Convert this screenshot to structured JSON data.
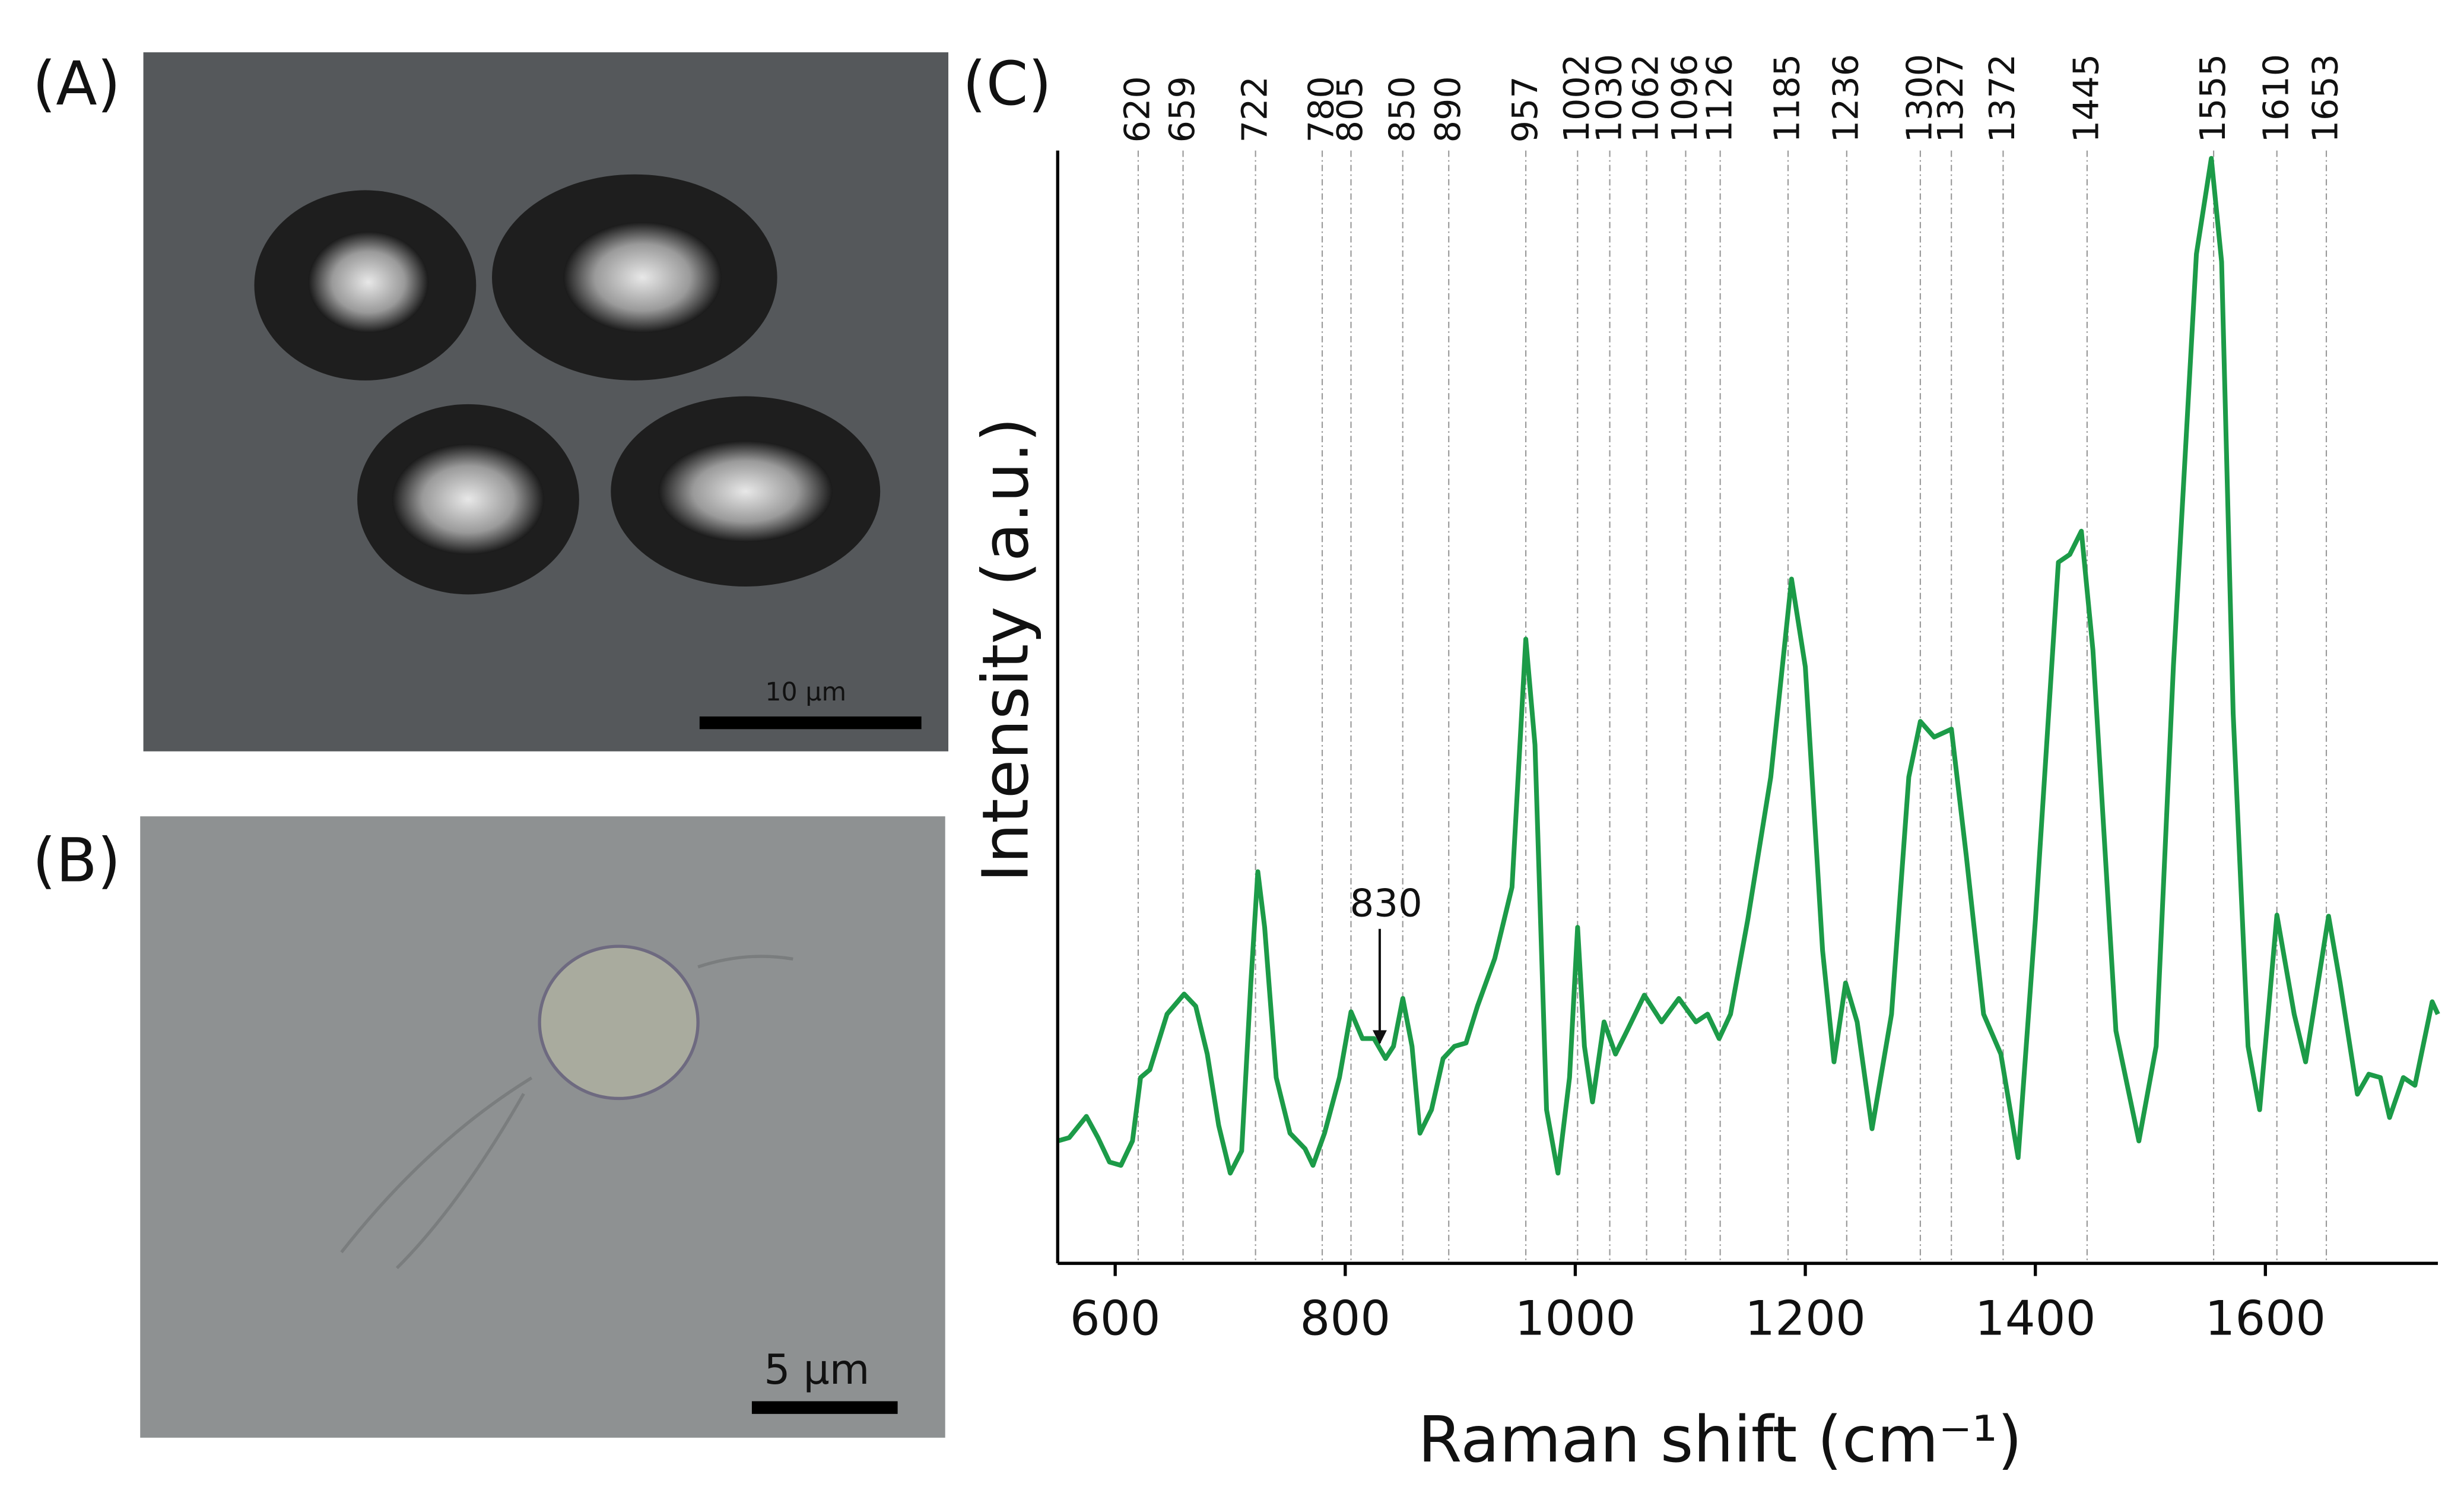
{
  "panels": [
    {
      "label": "(A)",
      "scale_bar": "10 μm"
    },
    {
      "label": "(B)",
      "scale_bar": "5 μm"
    }
  ],
  "chart_data": {
    "type": "line",
    "panel_label": "(C)",
    "x_label": "Raman shift (cm⁻¹)",
    "y_label": "Intensity (a.u.)",
    "xlim": [
      550,
      1750
    ],
    "ylim": [
      0,
      100
    ],
    "xticks": [
      600,
      800,
      1000,
      1200,
      1400,
      1600
    ],
    "peak_lines": [
      620,
      659,
      722,
      780,
      805,
      850,
      890,
      957,
      1002,
      1030,
      1062,
      1096,
      1126,
      1185,
      1236,
      1300,
      1327,
      1372,
      1445,
      1555,
      1610,
      1653
    ],
    "annotation": 830,
    "series": [
      {
        "color": "#1c9b48",
        "x": [
          550,
          560,
          575,
          585,
          595,
          605,
          615,
          622,
          630,
          645,
          660,
          670,
          680,
          690,
          700,
          710,
          718,
          724,
          730,
          740,
          752,
          765,
          772,
          782,
          795,
          805,
          815,
          825,
          835,
          842,
          850,
          858,
          865,
          875,
          885,
          895,
          905,
          915,
          930,
          945,
          957,
          965,
          975,
          985,
          995,
          1002,
          1008,
          1015,
          1025,
          1035,
          1045,
          1060,
          1075,
          1090,
          1105,
          1115,
          1125,
          1135,
          1150,
          1170,
          1188,
          1200,
          1215,
          1225,
          1235,
          1245,
          1258,
          1275,
          1290,
          1300,
          1312,
          1327,
          1340,
          1355,
          1370,
          1385,
          1400,
          1420,
          1430,
          1440,
          1450,
          1470,
          1490,
          1505,
          1520,
          1540,
          1553,
          1562,
          1572,
          1585,
          1595,
          1610,
          1625,
          1635,
          1655,
          1665,
          1680,
          1690,
          1700,
          1708,
          1720,
          1730,
          1745,
          1750
        ],
        "values": [
          11.0,
          11.3,
          13.2,
          11.3,
          9.1,
          8.8,
          11.0,
          16.7,
          17.4,
          22.4,
          24.2,
          23.1,
          18.8,
          12.4,
          8.1,
          10.1,
          25.2,
          35.2,
          30.2,
          16.7,
          11.7,
          10.3,
          8.8,
          11.7,
          16.7,
          22.6,
          20.2,
          20.2,
          18.4,
          19.5,
          23.8,
          19.5,
          11.7,
          13.8,
          18.4,
          19.5,
          19.8,
          23.1,
          27.4,
          33.8,
          56.1,
          46.6,
          13.8,
          8.1,
          16.7,
          30.2,
          19.5,
          14.5,
          21.7,
          18.8,
          20.9,
          24.1,
          21.7,
          23.8,
          21.7,
          22.4,
          20.2,
          22.4,
          30.9,
          43.7,
          61.5,
          53.6,
          28.1,
          18.1,
          25.2,
          21.7,
          12.1,
          22.4,
          43.7,
          48.7,
          47.3,
          48.0,
          36.6,
          22.4,
          18.8,
          9.5,
          30.9,
          63.0,
          63.7,
          65.8,
          55.1,
          20.9,
          11.0,
          19.5,
          53.7,
          90.7,
          99.3,
          90.0,
          49.4,
          19.5,
          13.8,
          31.3,
          22.4,
          18.1,
          31.2,
          25.2,
          15.2,
          17.0,
          16.7,
          13.1,
          16.7,
          16.0,
          23.5,
          22.4
        ]
      }
    ]
  }
}
